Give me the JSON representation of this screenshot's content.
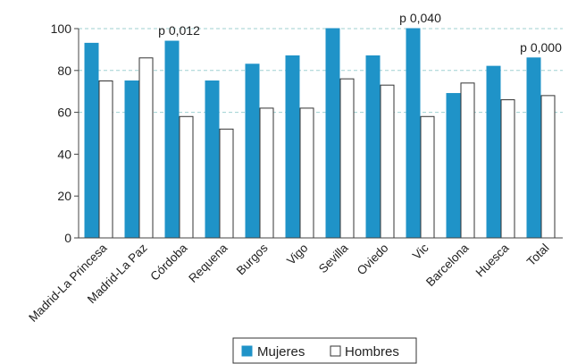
{
  "chart_data": {
    "type": "bar",
    "categories": [
      "Madrid-La Princesa",
      "Madrid-La Paz",
      "Córdoba",
      "Requena",
      "Burgos",
      "Vigo",
      "Sevilla",
      "Oviedo",
      "Vic",
      "Barcelona",
      "Huesca",
      "Total"
    ],
    "series": [
      {
        "name": "Mujeres",
        "color": "#1f93c8",
        "values": [
          93,
          75,
          94,
          75,
          83,
          87,
          100,
          87,
          100,
          69,
          82,
          86
        ]
      },
      {
        "name": "Hombres",
        "color": "#ffffff",
        "values": [
          75,
          86,
          58,
          52,
          62,
          62,
          76,
          73,
          58,
          74,
          66,
          68
        ]
      }
    ],
    "yticks": [
      0,
      20,
      40,
      60,
      80,
      100
    ],
    "ylim": [
      0,
      100
    ],
    "gridlines": [
      60,
      80,
      100
    ],
    "annotations": [
      {
        "category": "Córdoba",
        "text": "p 0,012"
      },
      {
        "category": "Vic",
        "text": "p 0,040"
      },
      {
        "category": "Total",
        "text": "p 0,000"
      }
    ],
    "legend": {
      "position": "bottom-center",
      "items": [
        "Mujeres",
        "Hombres"
      ]
    }
  }
}
